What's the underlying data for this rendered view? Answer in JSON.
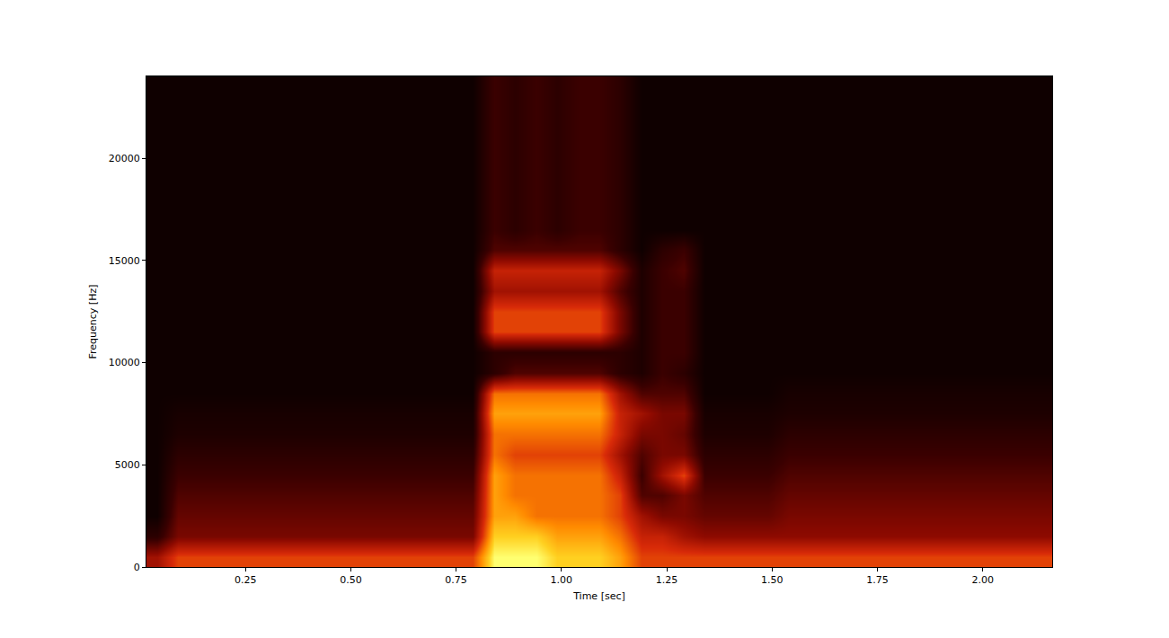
{
  "chart_data": {
    "type": "heatmap",
    "x_label": "Time [sec]",
    "y_label": "Frequency [Hz]",
    "grid": false,
    "xlim": [
      0.015,
      2.165
    ],
    "ylim": [
      0,
      24000
    ],
    "xticks": [
      {
        "value": 0.25,
        "label": "0.25"
      },
      {
        "value": 0.5,
        "label": "0.50"
      },
      {
        "value": 0.75,
        "label": "0.75"
      },
      {
        "value": 1.0,
        "label": "1.00"
      },
      {
        "value": 1.25,
        "label": "1.25"
      },
      {
        "value": 1.5,
        "label": "1.50"
      },
      {
        "value": 1.75,
        "label": "1.75"
      },
      {
        "value": 2.0,
        "label": "2.00"
      }
    ],
    "yticks": [
      0,
      5000,
      10000,
      15000,
      20000
    ],
    "x": [
      0.04,
      0.09,
      0.14,
      0.19,
      0.24,
      0.29,
      0.34,
      0.39,
      0.44,
      0.49,
      0.54,
      0.59,
      0.64,
      0.69,
      0.74,
      0.79,
      0.84,
      0.89,
      0.94,
      0.99,
      1.04,
      1.09,
      1.14,
      1.19,
      1.24,
      1.29,
      1.34,
      1.39,
      1.44,
      1.49,
      1.54,
      1.59,
      1.64,
      1.69,
      1.74,
      1.79,
      1.84,
      1.89,
      1.94,
      1.99,
      2.04,
      2.09,
      2.14
    ],
    "y": [
      500,
      1500,
      2500,
      3500,
      4500,
      5500,
      6500,
      7500,
      8500,
      9500,
      10500,
      11500,
      12500,
      13500,
      14500,
      15500,
      16500,
      17500,
      18500,
      19500,
      20500,
      21500,
      22500,
      23500
    ],
    "z": [
      [
        4,
        6,
        6,
        6,
        6,
        6,
        6,
        6,
        6,
        6,
        6,
        6,
        6,
        6,
        6,
        6,
        10,
        10,
        10,
        9,
        9,
        9,
        8,
        6,
        6,
        6,
        6,
        6,
        6,
        6,
        6,
        6,
        6,
        6,
        6,
        6,
        6,
        6,
        6,
        6,
        6,
        6,
        6
      ],
      [
        1,
        3,
        3,
        3,
        3,
        3,
        3,
        3,
        3,
        3,
        3,
        3,
        3,
        3,
        3,
        3,
        9,
        9,
        9,
        8,
        8,
        8,
        7,
        5,
        5,
        4,
        3.5,
        3.5,
        3.5,
        3.5,
        3.5,
        3.5,
        3.5,
        3.5,
        3.5,
        3.5,
        3.5,
        3.5,
        3.5,
        3.5,
        3.5,
        3.5,
        3.5
      ],
      [
        0,
        2.5,
        2.5,
        2.5,
        2.5,
        2.5,
        2.5,
        2.5,
        2.5,
        2.5,
        2.5,
        2.5,
        2.5,
        2.5,
        2.5,
        2.5,
        8,
        8,
        7,
        7,
        7,
        7,
        6,
        4,
        3,
        3,
        2.5,
        2.5,
        2.5,
        2.5,
        3,
        3,
        3,
        3,
        3,
        3,
        3,
        3,
        3,
        3,
        3,
        3,
        3
      ],
      [
        0,
        2,
        2,
        2,
        2,
        2,
        2,
        2,
        2,
        2,
        2,
        2,
        2,
        2,
        2,
        2,
        8,
        7,
        7,
        7,
        7,
        7,
        6,
        2,
        2,
        3,
        2,
        2,
        2,
        2,
        2.5,
        2.5,
        2.5,
        2.5,
        2.5,
        2.5,
        2.5,
        2.5,
        2.5,
        2.5,
        2.5,
        2.5,
        2.5
      ],
      [
        0,
        1.5,
        1.5,
        1.5,
        1.5,
        1.5,
        1.5,
        1.5,
        1.5,
        1.5,
        1.5,
        1.5,
        1.5,
        1.5,
        1.5,
        1.5,
        8,
        7,
        7,
        7,
        7,
        7,
        5,
        1.5,
        4,
        6,
        1.5,
        1.5,
        1.5,
        1.5,
        2,
        2,
        2,
        2,
        2,
        2,
        2,
        2,
        2,
        2,
        2,
        2,
        2
      ],
      [
        0,
        1,
        1,
        1,
        1,
        1,
        1,
        1,
        1,
        1,
        1,
        1,
        1,
        1,
        1,
        1,
        7,
        6,
        6,
        6,
        6,
        6,
        4,
        2,
        3,
        3,
        1,
        1,
        1,
        1,
        1.5,
        1.5,
        1.5,
        1.5,
        1.5,
        1.5,
        1.5,
        1.5,
        1.5,
        1.5,
        1.5,
        1.5,
        1.5
      ],
      [
        0,
        0.5,
        0.5,
        0.5,
        0.5,
        0.5,
        0.5,
        0.5,
        0.5,
        0.5,
        0.5,
        0.5,
        0.5,
        0.5,
        0.5,
        0.5,
        7,
        7,
        7,
        7,
        7,
        7,
        5,
        3,
        3,
        2.5,
        0.5,
        0.5,
        0.5,
        0.5,
        1,
        1,
        1,
        1,
        1,
        1,
        1,
        1,
        1,
        1,
        1,
        1,
        1
      ],
      [
        0,
        0.3,
        0.3,
        0.3,
        0.3,
        0.3,
        0.3,
        0.3,
        0.3,
        0.3,
        0.3,
        0.3,
        0.3,
        0.3,
        0.3,
        0.3,
        8,
        8,
        8,
        8,
        8,
        8,
        5,
        4,
        3,
        3,
        0.3,
        0.3,
        0.3,
        0.3,
        0.5,
        0.5,
        0.5,
        0.5,
        0.5,
        0.5,
        0.5,
        0.5,
        0.5,
        0.5,
        0.5,
        0.5,
        0.5
      ],
      [
        0,
        0,
        0,
        0,
        0,
        0,
        0,
        0,
        0,
        0,
        0,
        0,
        0,
        0,
        0,
        0,
        7,
        7,
        7,
        7,
        7,
        7,
        4,
        2,
        2,
        2,
        0,
        0,
        0,
        0,
        0.3,
        0.3,
        0.3,
        0.3,
        0.3,
        0.3,
        0.3,
        0.3,
        0.3,
        0.3,
        0.3,
        0.3,
        0.3
      ],
      [
        0,
        0,
        0,
        0,
        0,
        0,
        0,
        0,
        0,
        0,
        0,
        0,
        0,
        0,
        0,
        0,
        1,
        2,
        2,
        2,
        2,
        2,
        1,
        0.5,
        1.5,
        1,
        0,
        0,
        0,
        0,
        0,
        0,
        0,
        0,
        0,
        0,
        0,
        0,
        0,
        0,
        0,
        0,
        0
      ],
      [
        0,
        0,
        0,
        0,
        0,
        0,
        0,
        0,
        0,
        0,
        0,
        0,
        0,
        0,
        0,
        0,
        1,
        1,
        1,
        1,
        1,
        1,
        1,
        0.5,
        1.5,
        1.5,
        0,
        0,
        0,
        0,
        0,
        0,
        0,
        0,
        0,
        0,
        0,
        0,
        0,
        0,
        0,
        0,
        0
      ],
      [
        0,
        0,
        0,
        0,
        0,
        0,
        0,
        0,
        0,
        0,
        0,
        0,
        0,
        0,
        0,
        0,
        6,
        6,
        6,
        6,
        6,
        6,
        3,
        0.5,
        1.5,
        1.5,
        0,
        0,
        0,
        0,
        0,
        0,
        0,
        0,
        0,
        0,
        0,
        0,
        0,
        0,
        0,
        0,
        0
      ],
      [
        0,
        0,
        0,
        0,
        0,
        0,
        0,
        0,
        0,
        0,
        0,
        0,
        0,
        0,
        0,
        0,
        6,
        6,
        6,
        6,
        6,
        6,
        3,
        0.5,
        1.5,
        1.5,
        0,
        0,
        0,
        0,
        0,
        0,
        0,
        0,
        0,
        0,
        0,
        0,
        0,
        0,
        0,
        0,
        0
      ],
      [
        0,
        0,
        0,
        0,
        0,
        0,
        0,
        0,
        0,
        0,
        0,
        0,
        0,
        0,
        0,
        0,
        4,
        4,
        4,
        4,
        4,
        4,
        2,
        0.5,
        1.5,
        1.5,
        0,
        0,
        0,
        0,
        0,
        0,
        0,
        0,
        0,
        0,
        0,
        0,
        0,
        0,
        0,
        0,
        0
      ],
      [
        0,
        0,
        0,
        0,
        0,
        0,
        0,
        0,
        0,
        0,
        0,
        0,
        0,
        0,
        0,
        0,
        5,
        5,
        5,
        5,
        5,
        5,
        3,
        0.5,
        1.5,
        2,
        0,
        0,
        0,
        0,
        0,
        0,
        0,
        0,
        0,
        0,
        0,
        0,
        0,
        0,
        0,
        0,
        0
      ],
      [
        0,
        0,
        0,
        0,
        0,
        0,
        0,
        0,
        0,
        0,
        0,
        0,
        0,
        0,
        0,
        0,
        2,
        2,
        2,
        2,
        2,
        2,
        1,
        0,
        1,
        1.5,
        0,
        0,
        0,
        0,
        0,
        0,
        0,
        0,
        0,
        0,
        0,
        0,
        0,
        0,
        0,
        0,
        0
      ],
      [
        0,
        0,
        0,
        0,
        0,
        0,
        0,
        0,
        0,
        0,
        0,
        0,
        0,
        0,
        0,
        0,
        1.5,
        1,
        1.5,
        1,
        1.5,
        1.5,
        1,
        0,
        0,
        0,
        0,
        0,
        0,
        0,
        0,
        0,
        0,
        0,
        0,
        0,
        0,
        0,
        0,
        0,
        0,
        0,
        0
      ],
      [
        0,
        0,
        0,
        0,
        0,
        0,
        0,
        0,
        0,
        0,
        0,
        0,
        0,
        0,
        0,
        0,
        1.5,
        1,
        1.5,
        1,
        1.5,
        1.5,
        1,
        0,
        0,
        0,
        0,
        0,
        0,
        0,
        0,
        0,
        0,
        0,
        0,
        0,
        0,
        0,
        0,
        0,
        0,
        0,
        0
      ],
      [
        0,
        0,
        0,
        0,
        0,
        0,
        0,
        0,
        0,
        0,
        0,
        0,
        0,
        0,
        0,
        0,
        1.5,
        1,
        1.5,
        1,
        1.5,
        1.5,
        1,
        0,
        0,
        0,
        0,
        0,
        0,
        0,
        0,
        0,
        0,
        0,
        0,
        0,
        0,
        0,
        0,
        0,
        0,
        0,
        0
      ],
      [
        0,
        0,
        0,
        0,
        0,
        0,
        0,
        0,
        0,
        0,
        0,
        0,
        0,
        0,
        0,
        0,
        1.5,
        1,
        1.5,
        1,
        1.5,
        1.5,
        1,
        0,
        0,
        0,
        0,
        0,
        0,
        0,
        0,
        0,
        0,
        0,
        0,
        0,
        0,
        0,
        0,
        0,
        0,
        0,
        0
      ],
      [
        0,
        0,
        0,
        0,
        0,
        0,
        0,
        0,
        0,
        0,
        0,
        0,
        0,
        0,
        0,
        0,
        1.5,
        1,
        1.5,
        1,
        1.5,
        1.5,
        1,
        0,
        0,
        0,
        0,
        0,
        0,
        0,
        0,
        0,
        0,
        0,
        0,
        0,
        0,
        0,
        0,
        0,
        0,
        0,
        0
      ],
      [
        0,
        0,
        0,
        0,
        0,
        0,
        0,
        0,
        0,
        0,
        0,
        0,
        0,
        0,
        0,
        0,
        1.5,
        1,
        1.5,
        1,
        1.5,
        1.5,
        1,
        0,
        0,
        0,
        0,
        0,
        0,
        0,
        0,
        0,
        0,
        0,
        0,
        0,
        0,
        0,
        0,
        0,
        0,
        0,
        0
      ],
      [
        0,
        0,
        0,
        0,
        0,
        0,
        0,
        0,
        0,
        0,
        0,
        0,
        0,
        0,
        0,
        0,
        1.5,
        1,
        1.5,
        1,
        1.5,
        1.5,
        1,
        0,
        0,
        0,
        0,
        0,
        0,
        0,
        0,
        0,
        0,
        0,
        0,
        0,
        0,
        0,
        0,
        0,
        0,
        0,
        0
      ],
      [
        0,
        0,
        0,
        0,
        0,
        0,
        0,
        0,
        0,
        0,
        0,
        0,
        0,
        0,
        0,
        0,
        1.5,
        1,
        1.5,
        1,
        1.5,
        1.5,
        1,
        0,
        0,
        0,
        0,
        0,
        0,
        0,
        0,
        0,
        0,
        0,
        0,
        0,
        0,
        0,
        0,
        0,
        0,
        0,
        0
      ]
    ]
  }
}
